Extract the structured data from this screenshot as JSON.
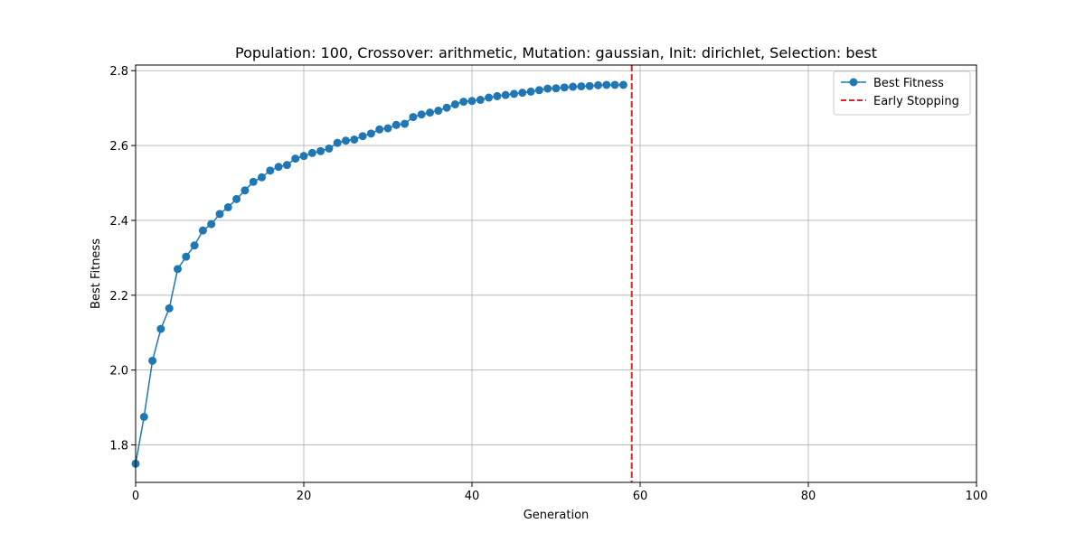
{
  "chart_data": {
    "type": "line",
    "title": "Population: 100, Crossover: arithmetic, Mutation: gaussian, Init: dirichlet, Selection: best",
    "xlabel": "Generation",
    "ylabel": "Best Fitness",
    "xlim": [
      0,
      100
    ],
    "ylim": [
      1.7,
      2.815
    ],
    "xticks": [
      0,
      20,
      40,
      60,
      80,
      100
    ],
    "yticks": [
      1.8,
      2.0,
      2.2,
      2.4,
      2.6,
      2.8
    ],
    "xtick_labels": [
      "0",
      "20",
      "40",
      "60",
      "80",
      "100"
    ],
    "ytick_labels": [
      "1.8",
      "2.0",
      "2.2",
      "2.4",
      "2.6",
      "2.8"
    ],
    "grid": true,
    "legend_position": "top-right",
    "series": [
      {
        "name": "Best Fitness",
        "color": "#1f77b4",
        "marker": "circle",
        "x": [
          0,
          1,
          2,
          3,
          4,
          5,
          6,
          7,
          8,
          9,
          10,
          11,
          12,
          13,
          14,
          15,
          16,
          17,
          18,
          19,
          20,
          21,
          22,
          23,
          24,
          25,
          26,
          27,
          28,
          29,
          30,
          31,
          32,
          33,
          34,
          35,
          36,
          37,
          38,
          39,
          40,
          41,
          42,
          43,
          44,
          45,
          46,
          47,
          48,
          49,
          50,
          51,
          52,
          53,
          54,
          55,
          56,
          57,
          58
        ],
        "values": [
          1.75,
          1.875,
          2.025,
          2.11,
          2.165,
          2.27,
          2.303,
          2.333,
          2.373,
          2.39,
          2.417,
          2.435,
          2.457,
          2.48,
          2.503,
          2.515,
          2.533,
          2.543,
          2.548,
          2.565,
          2.572,
          2.58,
          2.585,
          2.592,
          2.607,
          2.613,
          2.616,
          2.625,
          2.632,
          2.643,
          2.646,
          2.655,
          2.658,
          2.676,
          2.683,
          2.688,
          2.693,
          2.701,
          2.71,
          2.717,
          2.719,
          2.722,
          2.728,
          2.732,
          2.735,
          2.738,
          2.741,
          2.744,
          2.748,
          2.752,
          2.753,
          2.755,
          2.757,
          2.758,
          2.759,
          2.761,
          2.762,
          2.762,
          2.762
        ]
      }
    ],
    "vlines": [
      {
        "name": "Early Stopping",
        "x": 59,
        "color": "#d62728",
        "style": "dashed"
      }
    ]
  }
}
